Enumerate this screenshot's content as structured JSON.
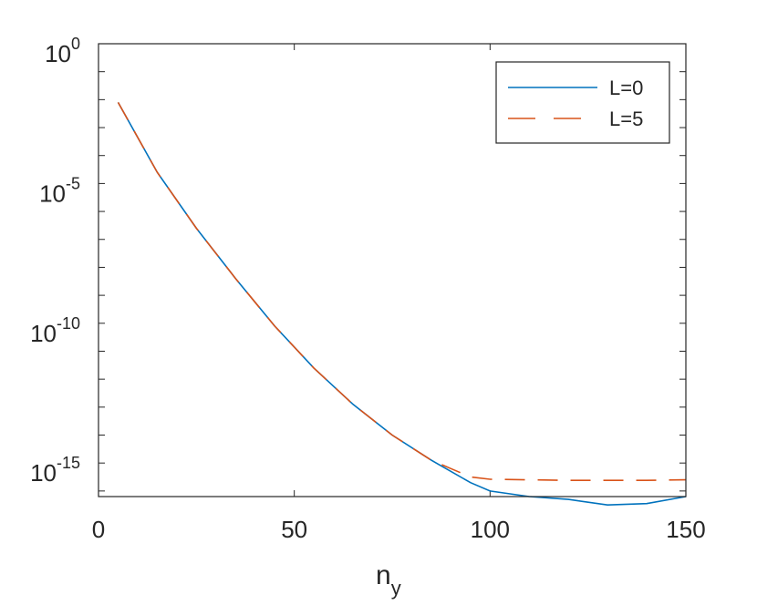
{
  "chart_data": {
    "type": "line",
    "xlabel": "n",
    "xlabel_sub": "y",
    "ylabel": "",
    "y_scale": "log",
    "xlim": [
      0,
      150
    ],
    "ylim_exp": [
      -16.2,
      0
    ],
    "x_ticks": [
      "0",
      "50",
      "100",
      "150"
    ],
    "y_ticks": [
      {
        "base": "10",
        "exp": "0"
      },
      {
        "base": "10",
        "exp": "-5"
      },
      {
        "base": "10",
        "exp": "-10"
      },
      {
        "base": "10",
        "exp": "-15"
      }
    ],
    "legend_position": "top-right",
    "series": [
      {
        "name": "L=0",
        "color": "#0072BD",
        "style": "solid",
        "x": [
          5,
          15,
          25,
          35,
          45,
          55,
          65,
          75,
          85,
          95,
          100,
          110,
          120,
          130,
          140,
          150
        ],
        "log10_y": [
          -2.1,
          -4.6,
          -6.6,
          -8.4,
          -10.1,
          -11.6,
          -12.9,
          -14.0,
          -14.9,
          -15.7,
          -16.0,
          -16.2,
          -16.3,
          -16.5,
          -16.45,
          -16.2
        ]
      },
      {
        "name": "L=5",
        "color": "#D95319",
        "style": "dashed",
        "x": [
          5,
          15,
          25,
          35,
          45,
          55,
          65,
          75,
          85,
          90,
          95,
          100,
          110,
          120,
          130,
          140,
          150
        ],
        "log10_y": [
          -2.1,
          -4.6,
          -6.6,
          -8.4,
          -10.1,
          -11.6,
          -12.9,
          -14.0,
          -14.9,
          -15.2,
          -15.5,
          -15.58,
          -15.6,
          -15.62,
          -15.62,
          -15.62,
          -15.6
        ]
      }
    ]
  }
}
